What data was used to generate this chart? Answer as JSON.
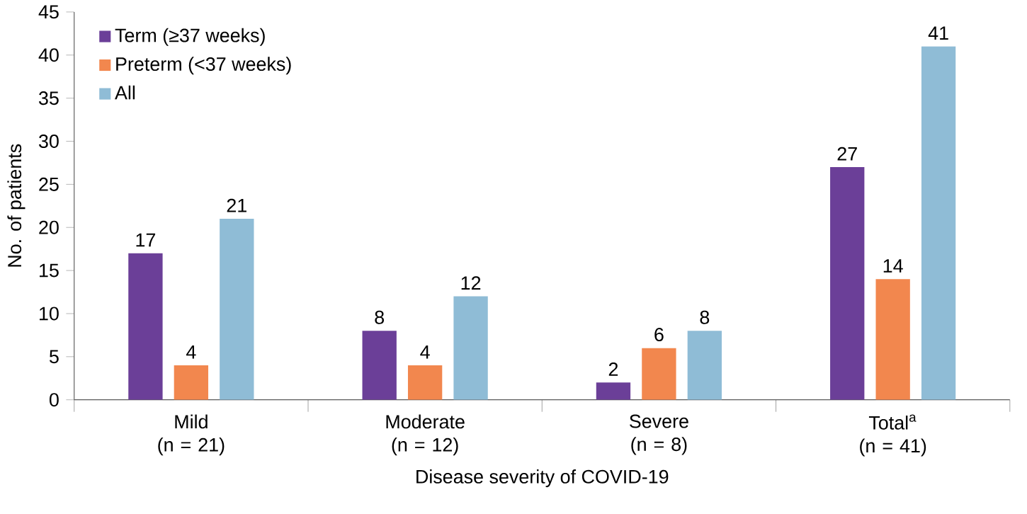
{
  "chart_data": {
    "type": "bar",
    "xlabel": "Disease severity of COVID-19",
    "ylabel": "No. of patients",
    "categories": [
      "Mild (n = 21)",
      "Moderate (n = 12)",
      "Severe (n = 8)",
      "Total$^{a}$ (n = 41)"
    ],
    "series": [
      {
        "name": "Term (≥37 weeks)",
        "color": "#6b3f98",
        "values": [
          17,
          8,
          2,
          27
        ]
      },
      {
        "name": "Preterm (<37 weeks)",
        "color": "#f2874e",
        "values": [
          4,
          4,
          6,
          14
        ]
      },
      {
        "name": "All",
        "color": "#8fbcd6",
        "values": [
          21,
          12,
          8,
          41
        ]
      }
    ],
    "ylim": [
      0,
      45
    ],
    "yticks": [
      0,
      5,
      10,
      15,
      20,
      25,
      30,
      35,
      40,
      45
    ],
    "data_labels": true,
    "legend": "top left",
    "grid": false
  }
}
